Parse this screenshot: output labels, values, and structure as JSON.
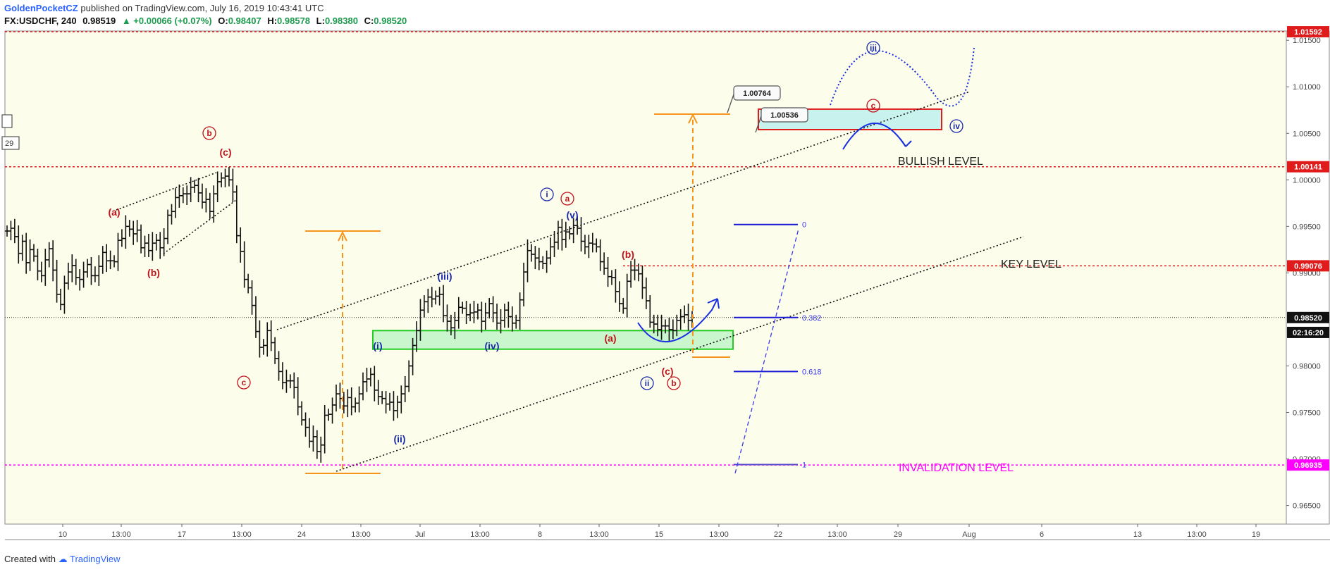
{
  "header": {
    "author": "GoldenPocketCZ",
    "published": "published on TradingView.com, July 16, 2019 10:43:41 UTC",
    "symbol": "FX:USDCHF, 240",
    "price": "0.98519",
    "change": "▲ +0.00066 (+0.07%)",
    "o_label": "O:",
    "o": "0.98407",
    "h_label": "H:",
    "h": "0.98578",
    "l_label": "L:",
    "l": "0.98380",
    "c_label": "C:",
    "c": "0.98520"
  },
  "footer": {
    "created_with": "Created with",
    "brand": "TradingView"
  },
  "colors": {
    "background": "#fdfdec",
    "candle": "#111111",
    "red_wave": "#c0141c",
    "blue_wave": "#1a2aa8",
    "green_zone": "#bff5c8",
    "green_border": "#22cc22",
    "target_zone": "#c8f2ee",
    "target_border": "#e01b1b",
    "orange": "#f7941d",
    "magenta": "#ff00ff",
    "fib_blue": "#1a1ad6"
  },
  "chart_data": {
    "type": "candlestick",
    "symbol": "USDCHF",
    "timeframe": "240",
    "ylim": [
      0.963,
      1.016
    ],
    "price_ticks": [
      "1.01500",
      "1.01000",
      "1.00500",
      "1.00000",
      "0.99500",
      "0.99000",
      "0.98000",
      "0.97500",
      "0.97000",
      "0.96500"
    ],
    "time_ticks": [
      "10",
      "13:00",
      "17",
      "13:00",
      "24",
      "13:00",
      "Jul",
      "13:00",
      "8",
      "13:00",
      "15",
      "13:00",
      "22",
      "13:00",
      "29",
      "Aug",
      "6",
      "13",
      "13:00",
      "19"
    ],
    "price_labels": [
      {
        "text": "1.01592",
        "value": 1.01592,
        "style": "red"
      },
      {
        "text": "1.00141",
        "value": 1.00141,
        "style": "red"
      },
      {
        "text": "0.99076",
        "value": 0.99076,
        "style": "red"
      },
      {
        "text": "0.98520",
        "value": 0.9852,
        "style": "black"
      },
      {
        "text": "02:16:20",
        "value": 0.9836,
        "style": "black"
      },
      {
        "text": "0.96935",
        "value": 0.96935,
        "style": "magenta"
      }
    ],
    "horizontal_levels": [
      {
        "value": 1.01592,
        "color": "red"
      },
      {
        "value": 1.00141,
        "color": "red"
      },
      {
        "value": 0.99076,
        "color": "red",
        "start_date": "Jul 12"
      },
      {
        "value": 0.9852,
        "color": "black"
      },
      {
        "value": 0.96935,
        "color": "magenta"
      }
    ],
    "candles_close": [
      0.9945,
      0.9948,
      0.9939,
      0.9921,
      0.9934,
      0.9911,
      0.9925,
      0.9918,
      0.9902,
      0.9897,
      0.9914,
      0.9926,
      0.9903,
      0.9877,
      0.9866,
      0.9889,
      0.9901,
      0.9908,
      0.9895,
      0.9893,
      0.9901,
      0.9909,
      0.9897,
      0.9897,
      0.9907,
      0.9922,
      0.9913,
      0.9913,
      0.9912,
      0.9935,
      0.9937,
      0.995,
      0.9947,
      0.9942,
      0.9946,
      0.9927,
      0.9932,
      0.9924,
      0.9932,
      0.9935,
      0.9927,
      0.9937,
      0.9962,
      0.9966,
      0.9981,
      0.9983,
      0.9985,
      0.9985,
      0.9992,
      0.9994,
      0.9986,
      0.9976,
      0.9979,
      0.9966,
      0.9985,
      0.9998,
      1.0002,
      1.0004,
      1.0,
      0.9987,
      0.994,
      0.9923,
      0.9893,
      0.9884,
      0.9865,
      0.9837,
      0.982,
      0.9822,
      0.9838,
      0.9825,
      0.9808,
      0.9794,
      0.9782,
      0.9784,
      0.9784,
      0.9777,
      0.9756,
      0.9742,
      0.9734,
      0.9719,
      0.9724,
      0.9708,
      0.9715,
      0.9747,
      0.9748,
      0.9758,
      0.977,
      0.9765,
      0.9757,
      0.9766,
      0.9756,
      0.976,
      0.977,
      0.9783,
      0.9786,
      0.9791,
      0.9774,
      0.9767,
      0.9765,
      0.9759,
      0.9761,
      0.9752,
      0.9761,
      0.977,
      0.9778,
      0.98,
      0.9822,
      0.9838,
      0.986,
      0.9869,
      0.9874,
      0.9872,
      0.9875,
      0.9877,
      0.9854,
      0.9848,
      0.9841,
      0.9849,
      0.9863,
      0.9862,
      0.9855,
      0.9857,
      0.9858,
      0.986,
      0.9848,
      0.9857,
      0.9867,
      0.9857,
      0.9846,
      0.9849,
      0.986,
      0.9853,
      0.9846,
      0.9849,
      0.9871,
      0.9901,
      0.9924,
      0.992,
      0.9916,
      0.9912,
      0.991,
      0.9916,
      0.9928,
      0.9933,
      0.9949,
      0.9936,
      0.9944,
      0.9942,
      0.9951,
      0.9948,
      0.9934,
      0.9928,
      0.9932,
      0.9931,
      0.9928,
      0.9912,
      0.9905,
      0.9896,
      0.9895,
      0.988,
      0.9867,
      0.9862,
      0.9891,
      0.9903,
      0.9903,
      0.9899,
      0.9884,
      0.987,
      0.9847,
      0.9845,
      0.9839,
      0.9843,
      0.9843,
      0.9839,
      0.9838,
      0.9849,
      0.9853,
      0.9855,
      0.9849,
      0.9852
    ],
    "wave_labels": [
      {
        "text": "(a)",
        "color": "red"
      },
      {
        "text": "(b)",
        "color": "red"
      },
      {
        "text": "(c)",
        "color": "red"
      },
      {
        "text": "b",
        "color": "red",
        "circled": true
      },
      {
        "text": "c",
        "color": "red",
        "circled": true
      },
      {
        "text": "(i)",
        "color": "blue"
      },
      {
        "text": "(ii)",
        "color": "blue"
      },
      {
        "text": "(iii)",
        "color": "blue"
      },
      {
        "text": "(iv)",
        "color": "blue"
      },
      {
        "text": "(v)",
        "color": "blue"
      },
      {
        "text": "i",
        "color": "blue",
        "circled": true
      },
      {
        "text": "a",
        "color": "red",
        "circled": true
      },
      {
        "text": "(b)",
        "color": "red"
      },
      {
        "text": "(a)",
        "color": "red"
      },
      {
        "text": "(c)",
        "color": "red"
      },
      {
        "text": "ii",
        "color": "blue",
        "circled": true
      },
      {
        "text": "b",
        "color": "red",
        "circled": true
      },
      {
        "text": "iii",
        "color": "blue",
        "circled": true
      },
      {
        "text": "c",
        "color": "red",
        "circled": true
      },
      {
        "text": "iv",
        "color": "blue",
        "circled": true
      }
    ],
    "callouts": [
      {
        "text": "1.00764",
        "value": 1.00764
      },
      {
        "text": "1.00536",
        "value": 1.00536
      }
    ],
    "fib_levels": [
      {
        "label": "0",
        "value": 0.9952
      },
      {
        "label": "0.382",
        "value": 0.9852
      },
      {
        "label": "0.618",
        "value": 0.9794
      },
      {
        "label": "1",
        "value": 0.9694
      }
    ],
    "annotations": [
      {
        "text": "BULLISH LEVEL"
      },
      {
        "text": "KEY LEVEL"
      },
      {
        "text": "INVALIDATION LEVEL"
      }
    ],
    "edge_labels": [
      "29"
    ],
    "zones": [
      {
        "name": "support-zone",
        "top": 0.9838,
        "bottom": 0.9818
      },
      {
        "name": "target-zone",
        "top": 1.0076,
        "bottom": 1.0054
      }
    ]
  }
}
